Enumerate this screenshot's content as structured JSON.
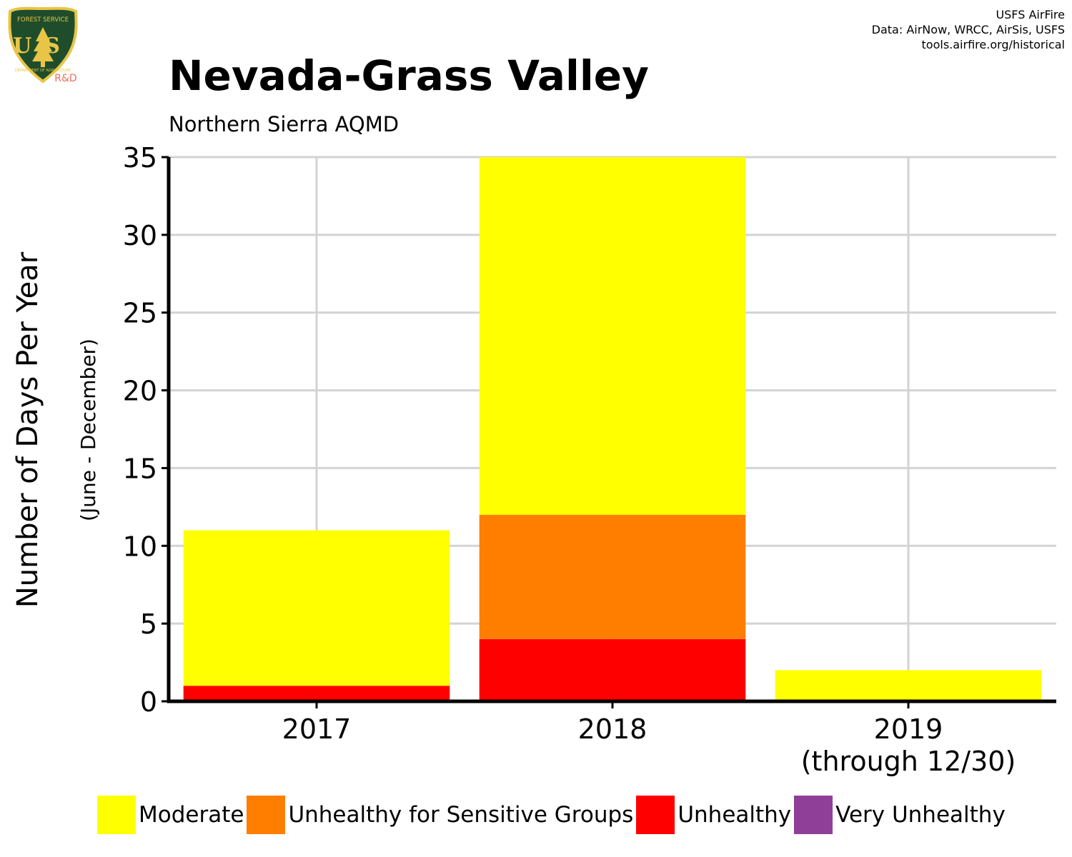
{
  "header": {
    "title": "Nevada-Grass Valley",
    "subtitle": "Northern Sierra AQMD",
    "credits": [
      "USFS AirFire",
      "Data: AirNow, WRCC, AirSis, USFS",
      "tools.airfire.org/historical"
    ]
  },
  "logo": {
    "top_text": "FOREST SERVICE",
    "mark": "US",
    "bottom_text": "DEPARTMENT OF AGRICULTURE",
    "badge": "R&D",
    "colors": {
      "shield": "#1f4d2b",
      "border": "#e8c547",
      "badge": "#e8705a"
    }
  },
  "chart_data": {
    "type": "bar",
    "stacked": true,
    "ylabel": "Number of Days Per Year",
    "ylabel_sub": "(June - December)",
    "ylim": [
      0,
      35
    ],
    "yticks": [
      0,
      5,
      10,
      15,
      20,
      25,
      30,
      35
    ],
    "grid": true,
    "legend_placement": "bottom",
    "categories": [
      {
        "label": "2017",
        "sublabel": ""
      },
      {
        "label": "2018",
        "sublabel": ""
      },
      {
        "label": "2019",
        "sublabel": "(through 12/30)"
      }
    ],
    "series": [
      {
        "name": "Very Unhealthy",
        "color": "#8f3f97",
        "values": [
          0,
          0,
          0
        ]
      },
      {
        "name": "Unhealthy",
        "color": "#ff0000",
        "values": [
          1,
          4,
          0
        ]
      },
      {
        "name": "Unhealthy for Sensitive Groups",
        "color": "#ff7e00",
        "values": [
          0,
          8,
          0
        ]
      },
      {
        "name": "Moderate",
        "color": "#ffff00",
        "values": [
          10,
          23,
          2
        ]
      }
    ],
    "legend_order": [
      "Moderate",
      "Unhealthy for Sensitive Groups",
      "Unhealthy",
      "Very Unhealthy"
    ]
  }
}
